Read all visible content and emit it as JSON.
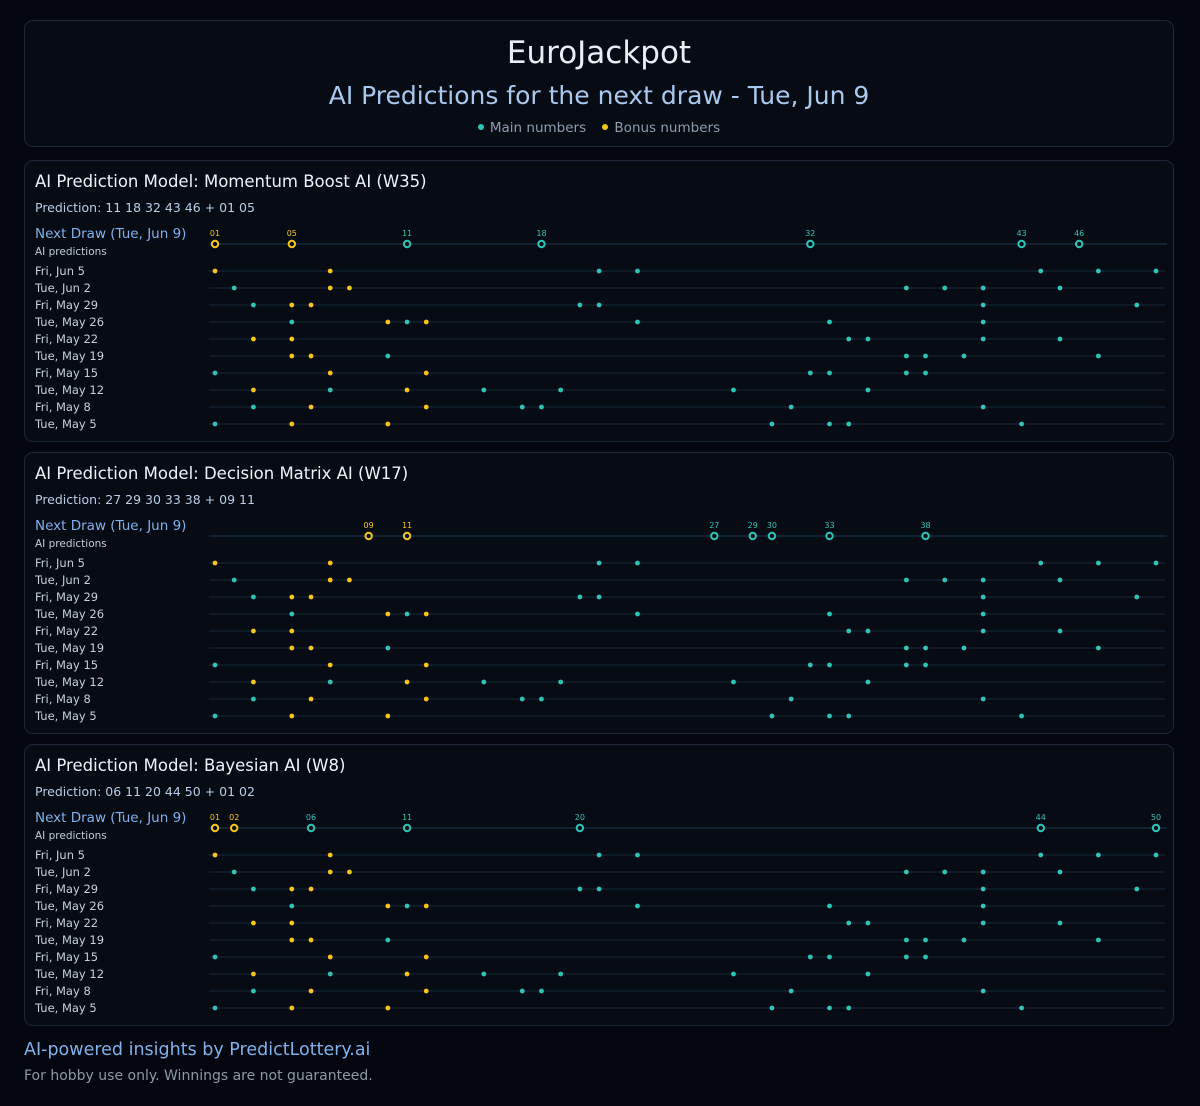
{
  "header": {
    "title": "EuroJackpot",
    "subtitle": "AI Predictions for the next draw - Tue, Jun 9",
    "legend": [
      {
        "label": "Main numbers",
        "color": "#2ec4b6"
      },
      {
        "label": "Bonus numbers",
        "color": "#f5c518"
      }
    ]
  },
  "colors": {
    "main": "#2ec4b6",
    "bonus": "#f5c518",
    "line": "#1f3a52",
    "row_line": "#1a2738"
  },
  "next_draw_label": "Next Draw (Tue, Jun 9)",
  "ai_predictions_label": "AI predictions",
  "history_rows": [
    "Fri, Jun 5",
    "Tue, Jun 2",
    "Fri, May 29",
    "Tue, May 26",
    "Fri, May 22",
    "Tue, May 19",
    "Fri, May 15",
    "Tue, May 12",
    "Fri, May 8",
    "Tue, May 5"
  ],
  "chart_data": [
    {
      "type": "scatter",
      "title": "AI Prediction Model: Momentum Boost AI (W35)",
      "prediction_text": "Prediction: 11 18 32 43 46 + 01 05",
      "next_draw": {
        "main": [
          11,
          18,
          32,
          43,
          46
        ],
        "bonus": [
          1,
          5
        ]
      },
      "x_range": [
        1,
        50
      ],
      "history": [
        {
          "date": "Fri, Jun 5",
          "main": [
            21,
            23,
            44,
            47,
            50
          ],
          "bonus": [
            1,
            7
          ]
        },
        {
          "date": "Tue, Jun 2",
          "main": [
            2,
            37,
            39,
            41,
            45
          ],
          "bonus": [
            7,
            8
          ]
        },
        {
          "date": "Fri, May 29",
          "main": [
            3,
            20,
            21,
            41,
            49
          ],
          "bonus": [
            5,
            6
          ]
        },
        {
          "date": "Tue, May 26",
          "main": [
            5,
            11,
            23,
            33,
            41
          ],
          "bonus": [
            10,
            12
          ]
        },
        {
          "date": "Fri, May 22",
          "main": [
            34,
            35,
            41,
            45
          ],
          "bonus": [
            3,
            5
          ]
        },
        {
          "date": "Tue, May 19",
          "main": [
            10,
            37,
            38,
            40,
            47
          ],
          "bonus": [
            5,
            6
          ]
        },
        {
          "date": "Fri, May 15",
          "main": [
            1,
            32,
            33,
            37,
            38
          ],
          "bonus": [
            7,
            12
          ]
        },
        {
          "date": "Tue, May 12",
          "main": [
            7,
            15,
            19,
            28,
            35
          ],
          "bonus": [
            3,
            11
          ]
        },
        {
          "date": "Fri, May 8",
          "main": [
            3,
            17,
            18,
            31,
            41
          ],
          "bonus": [
            6,
            12
          ]
        },
        {
          "date": "Tue, May 5",
          "main": [
            1,
            30,
            33,
            34,
            43
          ],
          "bonus": [
            5,
            10
          ]
        }
      ]
    },
    {
      "type": "scatter",
      "title": "AI Prediction Model: Decision Matrix AI (W17)",
      "prediction_text": "Prediction: 27 29 30 33 38 + 09 11",
      "next_draw": {
        "main": [
          27,
          29,
          30,
          33,
          38
        ],
        "bonus": [
          9,
          11
        ]
      },
      "x_range": [
        1,
        50
      ],
      "history": [
        {
          "date": "Fri, Jun 5",
          "main": [
            21,
            23,
            44,
            47,
            50
          ],
          "bonus": [
            1,
            7
          ]
        },
        {
          "date": "Tue, Jun 2",
          "main": [
            2,
            37,
            39,
            41,
            45
          ],
          "bonus": [
            7,
            8
          ]
        },
        {
          "date": "Fri, May 29",
          "main": [
            3,
            20,
            21,
            41,
            49
          ],
          "bonus": [
            5,
            6
          ]
        },
        {
          "date": "Tue, May 26",
          "main": [
            5,
            11,
            23,
            33,
            41
          ],
          "bonus": [
            10,
            12
          ]
        },
        {
          "date": "Fri, May 22",
          "main": [
            34,
            35,
            41,
            45
          ],
          "bonus": [
            3,
            5
          ]
        },
        {
          "date": "Tue, May 19",
          "main": [
            10,
            37,
            38,
            40,
            47
          ],
          "bonus": [
            5,
            6
          ]
        },
        {
          "date": "Fri, May 15",
          "main": [
            1,
            32,
            33,
            37,
            38
          ],
          "bonus": [
            7,
            12
          ]
        },
        {
          "date": "Tue, May 12",
          "main": [
            7,
            15,
            19,
            28,
            35
          ],
          "bonus": [
            3,
            11
          ]
        },
        {
          "date": "Fri, May 8",
          "main": [
            3,
            17,
            18,
            31,
            41
          ],
          "bonus": [
            6,
            12
          ]
        },
        {
          "date": "Tue, May 5",
          "main": [
            1,
            30,
            33,
            34,
            43
          ],
          "bonus": [
            5,
            10
          ]
        }
      ]
    },
    {
      "type": "scatter",
      "title": "AI Prediction Model: Bayesian AI (W8)",
      "prediction_text": "Prediction: 06 11 20 44 50 + 01 02",
      "next_draw": {
        "main": [
          6,
          11,
          20,
          44,
          50
        ],
        "bonus": [
          1,
          2
        ]
      },
      "x_range": [
        1,
        50
      ],
      "history": [
        {
          "date": "Fri, Jun 5",
          "main": [
            21,
            23,
            44,
            47,
            50
          ],
          "bonus": [
            1,
            7
          ]
        },
        {
          "date": "Tue, Jun 2",
          "main": [
            2,
            37,
            39,
            41,
            45
          ],
          "bonus": [
            7,
            8
          ]
        },
        {
          "date": "Fri, May 29",
          "main": [
            3,
            20,
            21,
            41,
            49
          ],
          "bonus": [
            5,
            6
          ]
        },
        {
          "date": "Tue, May 26",
          "main": [
            5,
            11,
            23,
            33,
            41
          ],
          "bonus": [
            10,
            12
          ]
        },
        {
          "date": "Fri, May 22",
          "main": [
            34,
            35,
            41,
            45
          ],
          "bonus": [
            3,
            5
          ]
        },
        {
          "date": "Tue, May 19",
          "main": [
            10,
            37,
            38,
            40,
            47
          ],
          "bonus": [
            5,
            6
          ]
        },
        {
          "date": "Fri, May 15",
          "main": [
            1,
            32,
            33,
            37,
            38
          ],
          "bonus": [
            7,
            12
          ]
        },
        {
          "date": "Tue, May 12",
          "main": [
            7,
            15,
            19,
            28,
            35
          ],
          "bonus": [
            3,
            11
          ]
        },
        {
          "date": "Fri, May 8",
          "main": [
            3,
            17,
            18,
            31,
            41
          ],
          "bonus": [
            6,
            12
          ]
        },
        {
          "date": "Tue, May 5",
          "main": [
            1,
            30,
            33,
            34,
            43
          ],
          "bonus": [
            5,
            10
          ]
        }
      ]
    }
  ],
  "footer": {
    "brand": "AI-powered insights by PredictLottery.ai",
    "disclaimer": "For hobby use only. Winnings are not guaranteed."
  }
}
